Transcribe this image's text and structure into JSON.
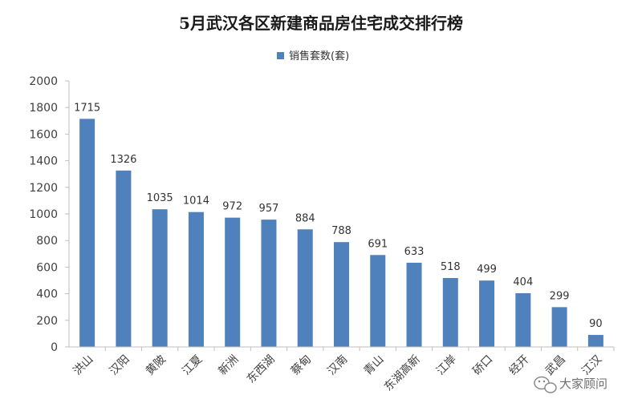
{
  "chart_data": {
    "type": "bar",
    "title": "5月武汉各区新建商品房住宅成交排行榜",
    "categories": [
      "洪山",
      "汉阳",
      "黄陂",
      "江夏",
      "新洲",
      "东西湖",
      "蔡甸",
      "汉南",
      "青山",
      "东湖高新",
      "江岸",
      "硚口",
      "经开",
      "武昌",
      "江汉"
    ],
    "series": [
      {
        "name": "销售套数(套)",
        "values": [
          1715,
          1326,
          1035,
          1014,
          972,
          957,
          884,
          788,
          691,
          633,
          518,
          499,
          404,
          299,
          90
        ],
        "color": "#4f81bd"
      }
    ],
    "xlabel": "",
    "ylabel": "",
    "ylim": [
      0,
      2000
    ],
    "yticks": [
      0,
      200,
      400,
      600,
      800,
      1000,
      1200,
      1400,
      1600,
      1800,
      2000
    ],
    "legend_position": "top-center",
    "grid": false,
    "data_labels": true
  },
  "watermark": {
    "text": "大家顾问",
    "icon": "wechat-icon"
  }
}
